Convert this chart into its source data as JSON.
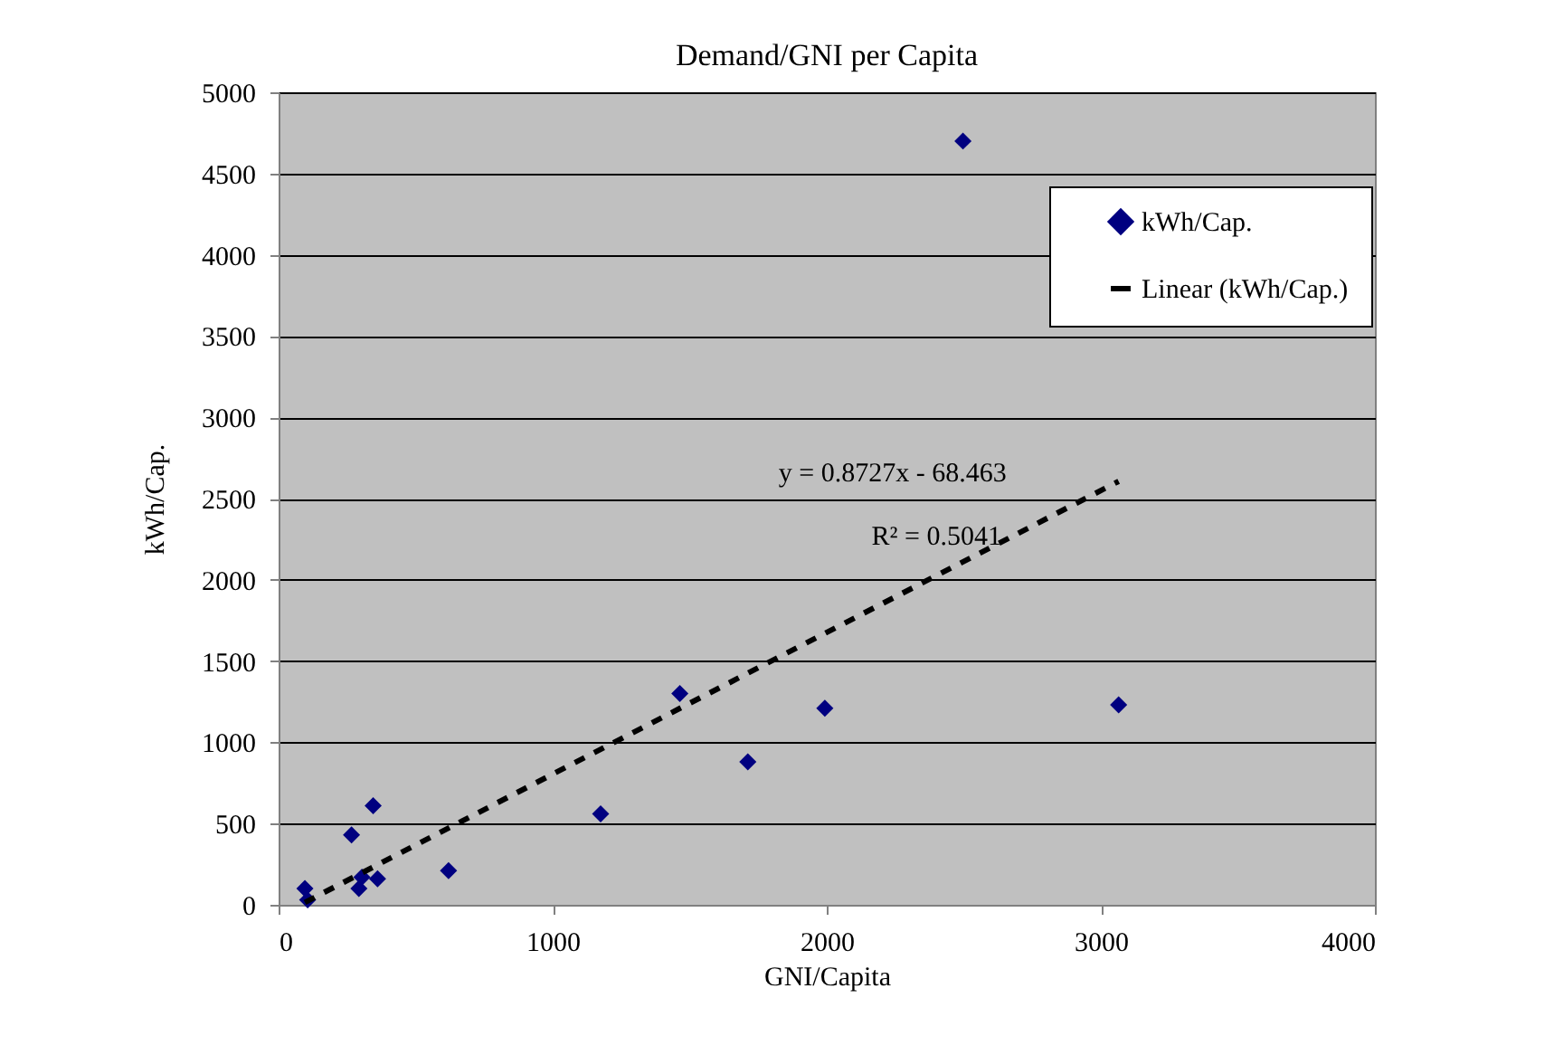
{
  "chart_data": {
    "type": "scatter",
    "title": "Demand/GNI per Capita",
    "xlabel": "GNI/Capita",
    "ylabel": "kWh/Cap.",
    "xlim": [
      0,
      4000
    ],
    "xticks": [
      0,
      1000,
      2000,
      3000,
      4000
    ],
    "ylim": [
      0,
      5000
    ],
    "yticks": [
      0,
      500,
      1000,
      1500,
      2000,
      2500,
      3000,
      3500,
      4000,
      4500,
      5000
    ],
    "grid": "y",
    "legend": "top right",
    "series": [
      {
        "name": "kWh/Cap.",
        "marker": "diamond",
        "color": "#000080",
        "x": [
          96,
          106,
          266,
          345,
          293,
          304,
          361,
          620,
          1175,
          1464,
          1712,
          1993,
          2497,
          3065
        ],
        "values": [
          100,
          30,
          430,
          610,
          100,
          170,
          160,
          210,
          560,
          1300,
          880,
          1210,
          4700,
          1230
        ]
      },
      {
        "name": "Linear (kWh/Cap.)",
        "type": "line",
        "color": "#000000",
        "line_style": "dashed",
        "x": [
          96,
          3065
        ],
        "values": [
          15,
          2606
        ]
      }
    ],
    "annotations": [
      "y = 0.8727x - 68.463",
      "R² = 0.5041"
    ]
  }
}
